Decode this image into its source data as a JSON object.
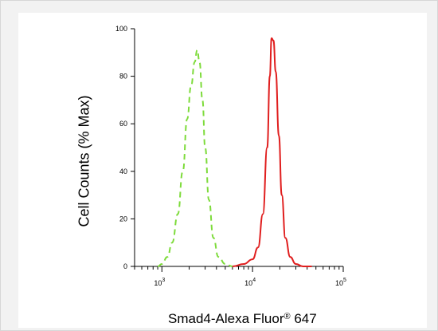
{
  "chart_data": {
    "type": "area",
    "xlabel_base": "Smad4-Alexa Fluor",
    "xlabel_mark": "®",
    "xlabel_tail": " 647",
    "ylabel": "Cell Counts (% Max)",
    "x_scale": "log",
    "xlim": [
      500,
      100000
    ],
    "ylim": [
      0,
      100
    ],
    "y_ticks": [
      "0",
      "20",
      "40",
      "60",
      "80",
      "100"
    ],
    "x_ticks": [
      {
        "base": "10",
        "exp": "3",
        "value": 1000
      },
      {
        "base": "10",
        "exp": "4",
        "value": 10000
      },
      {
        "base": "10",
        "exp": "5",
        "value": 100000
      }
    ],
    "grid": false,
    "series": [
      {
        "color": "#7ddb3a",
        "style": "dashed",
        "x": [
          900,
          1000,
          1150,
          1300,
          1500,
          1700,
          1900,
          2100,
          2300,
          2450,
          2600,
          2800,
          3000,
          3300,
          3700,
          4200,
          5000,
          6000
        ],
        "y": [
          0,
          1,
          4,
          10,
          22,
          40,
          62,
          76,
          86,
          91,
          86,
          70,
          50,
          28,
          12,
          4,
          1,
          0
        ]
      },
      {
        "color": "#e01e1e",
        "style": "solid",
        "x": [
          6000,
          8000,
          10000,
          11500,
          13000,
          14500,
          15500,
          16200,
          17000,
          18000,
          19500,
          21000,
          23000,
          26000,
          30000,
          36000,
          45000
        ],
        "y": [
          0,
          1,
          3,
          8,
          22,
          50,
          80,
          96,
          95,
          82,
          55,
          30,
          12,
          4,
          1,
          0,
          0
        ]
      }
    ]
  }
}
